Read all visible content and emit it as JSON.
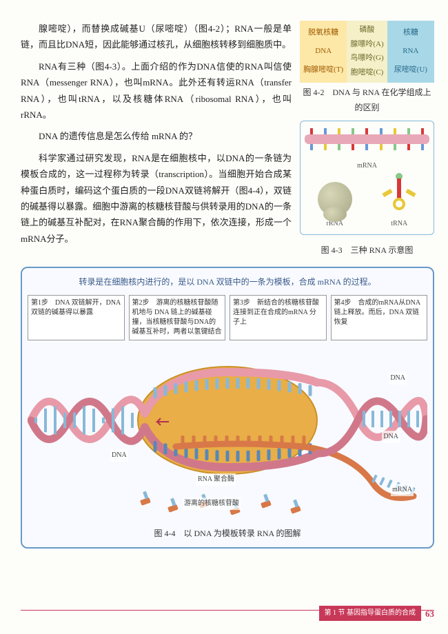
{
  "para1": "腺嘧啶），而替换成碱基U（尿嘧啶）（图4-2）；RNA一般是单链，而且比DNA短，因此能够通过核孔，从细胞核转移到细胞质中。",
  "para2": "RNA有三种（图4-3）。上面介绍的作为DNA信使的RNA叫信使RNA（messenger RNA），也叫mRNA。此外还有转运RNA（transfer RNA），也叫tRNA，以及核糖体RNA（ribosomal RNA），也叫rRNA。",
  "para3": "DNA 的遗传信息是怎么传给 mRNA 的？",
  "para4": "科学家通过研究发现，RNA是在细胞核中，以DNA的一条链为模板合成的，这一过程称为转录（transcription）。当细胞开始合成某种蛋白质时，编码这个蛋白质的一段DNA双链将解开（图4-4），双链的碱基得以暴露。细胞中游离的核糖核苷酸与供转录用的DNA的一条链上的碱基互补配对，在RNA聚合酶的作用下，依次连接，形成一个mRNA分子。",
  "fig42": {
    "left": [
      "脱氧核糖",
      "DNA",
      "胸腺嘧啶(T)"
    ],
    "mid": [
      "磷酸",
      "腺嘌呤(A)",
      "鸟嘌呤(G)",
      "胞嘧啶(C)"
    ],
    "right": [
      "核糖",
      "RNA",
      "尿嘧啶(U)"
    ],
    "caption": "图 4-2　DNA 与 RNA 在化学组成上的区别"
  },
  "fig43": {
    "mrna": "mRNA",
    "rrna": "rRNA",
    "trna": "tRNA",
    "caption": "图 4-3　三种 RNA 示意图"
  },
  "fig44": {
    "intro": "转录是在细胞核内进行的，是以 DNA 双链中的一条为模板，合成 mRNA 的过程。",
    "steps": [
      "第1步　DNA 双链解开，DNA 双链的碱基得以暴露",
      "第2步　游离的核糖核苷酸随机地与 DNA 链上的碱基碰撞，当核糖核苷酸与DNA的碱基互补时，两者以氢键结合",
      "第3步　新结合的核糖核苷酸连接到正在合成的mRNA 分子上",
      "第4步　合成的mRNA从DNA 链上释放。而后，DNA 双链恢复"
    ],
    "labels": {
      "dna1": "DNA",
      "dna2": "DNA",
      "dna3": "DNA",
      "poly": "RNA 聚合酶",
      "free": "游离的核糖核苷酸",
      "mrna": "mRNA"
    },
    "caption": "图 4-4　以 DNA 为模板转录 RNA 的图解",
    "colors": {
      "helix_strand": "#e89aa8",
      "helix_shadow": "#d0788a",
      "base_blue": "#88b8d8",
      "base_dark": "#5888b8",
      "polymerase": "#e8a838",
      "polymerase_dark": "#c88818",
      "nucleotide": "#d87848"
    }
  },
  "footer": {
    "section": "第 1 节 基因指导蛋白质的合成",
    "page": "63"
  }
}
